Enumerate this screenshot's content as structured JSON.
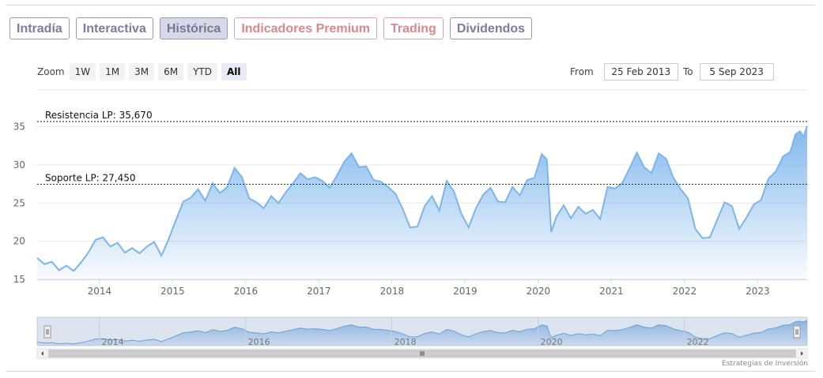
{
  "tabs": [
    {
      "label": "Intradía",
      "style": "normal"
    },
    {
      "label": "Interactiva",
      "style": "normal"
    },
    {
      "label": "Histórica",
      "style": "active"
    },
    {
      "label": "Indicadores Premium",
      "style": "premium"
    },
    {
      "label": "Trading",
      "style": "premium"
    },
    {
      "label": "Dividendos",
      "style": "normal"
    }
  ],
  "zoom": {
    "label": "Zoom",
    "buttons": [
      "1W",
      "1M",
      "3M",
      "6M",
      "YTD",
      "All"
    ],
    "selected": "All"
  },
  "range": {
    "from_label": "From",
    "from_value": "25 Feb 2013",
    "to_label": "To",
    "to_value": "5 Sep 2023"
  },
  "credit": "Estrategias de Inversión",
  "colors": {
    "line": "#7cb5ec",
    "resistance": "#111111",
    "support": "#a00000",
    "navigator_line": "#6a9fd8"
  },
  "chart_data": {
    "type": "area",
    "title": "",
    "xlabel": "",
    "ylabel": "",
    "xlim": [
      2013.15,
      2023.68
    ],
    "ylim": [
      15,
      36.5
    ],
    "y_ticks": [
      15,
      20,
      25,
      30,
      35
    ],
    "x_ticks": [
      2014,
      2015,
      2016,
      2017,
      2018,
      2019,
      2020,
      2021,
      2022,
      2023
    ],
    "navigator_ticks": [
      2014,
      2016,
      2018,
      2020,
      2022
    ],
    "grid": "horizontal",
    "legend": "none",
    "lines": [
      {
        "label": "Resistencia LP: 35,670",
        "value": 35.67,
        "color": "#111111"
      },
      {
        "label": "Soporte LP: 27,450",
        "value": 27.45,
        "color": "#a00000"
      }
    ],
    "series": [
      {
        "points": [
          [
            2013.15,
            17.8
          ],
          [
            2013.25,
            17.0
          ],
          [
            2013.35,
            17.3
          ],
          [
            2013.45,
            16.2
          ],
          [
            2013.55,
            16.8
          ],
          [
            2013.65,
            16.1
          ],
          [
            2013.75,
            17.2
          ],
          [
            2013.85,
            18.5
          ],
          [
            2013.95,
            20.2
          ],
          [
            2014.05,
            20.5
          ],
          [
            2014.15,
            19.3
          ],
          [
            2014.25,
            19.8
          ],
          [
            2014.35,
            18.5
          ],
          [
            2014.45,
            19.1
          ],
          [
            2014.55,
            18.4
          ],
          [
            2014.65,
            19.3
          ],
          [
            2014.75,
            19.9
          ],
          [
            2014.85,
            18.1
          ],
          [
            2014.95,
            20.3
          ],
          [
            2015.05,
            22.8
          ],
          [
            2015.15,
            25.2
          ],
          [
            2015.25,
            25.7
          ],
          [
            2015.35,
            26.8
          ],
          [
            2015.45,
            25.3
          ],
          [
            2015.55,
            27.6
          ],
          [
            2015.65,
            26.3
          ],
          [
            2015.75,
            27.1
          ],
          [
            2015.85,
            29.6
          ],
          [
            2015.95,
            28.4
          ],
          [
            2016.05,
            25.6
          ],
          [
            2016.15,
            25.1
          ],
          [
            2016.25,
            24.3
          ],
          [
            2016.35,
            25.9
          ],
          [
            2016.45,
            25.0
          ],
          [
            2016.55,
            26.4
          ],
          [
            2016.65,
            27.6
          ],
          [
            2016.75,
            28.9
          ],
          [
            2016.85,
            28.1
          ],
          [
            2016.95,
            28.4
          ],
          [
            2017.05,
            27.9
          ],
          [
            2017.15,
            27.0
          ],
          [
            2017.25,
            28.6
          ],
          [
            2017.35,
            30.4
          ],
          [
            2017.45,
            31.5
          ],
          [
            2017.55,
            29.7
          ],
          [
            2017.65,
            29.8
          ],
          [
            2017.75,
            28.0
          ],
          [
            2017.85,
            27.8
          ],
          [
            2017.95,
            27.1
          ],
          [
            2018.05,
            26.2
          ],
          [
            2018.15,
            24.2
          ],
          [
            2018.25,
            21.8
          ],
          [
            2018.35,
            21.9
          ],
          [
            2018.45,
            24.6
          ],
          [
            2018.55,
            25.9
          ],
          [
            2018.65,
            24.0
          ],
          [
            2018.75,
            27.9
          ],
          [
            2018.85,
            26.5
          ],
          [
            2018.95,
            23.6
          ],
          [
            2019.05,
            21.8
          ],
          [
            2019.15,
            24.3
          ],
          [
            2019.25,
            26.1
          ],
          [
            2019.35,
            27.0
          ],
          [
            2019.45,
            25.2
          ],
          [
            2019.55,
            25.1
          ],
          [
            2019.65,
            27.1
          ],
          [
            2019.75,
            26.0
          ],
          [
            2019.85,
            28.0
          ],
          [
            2019.95,
            28.3
          ],
          [
            2020.05,
            31.4
          ],
          [
            2020.12,
            30.7
          ],
          [
            2020.18,
            21.2
          ],
          [
            2020.25,
            23.2
          ],
          [
            2020.35,
            24.7
          ],
          [
            2020.45,
            23.0
          ],
          [
            2020.55,
            24.5
          ],
          [
            2020.65,
            23.6
          ],
          [
            2020.75,
            24.1
          ],
          [
            2020.85,
            22.9
          ],
          [
            2020.95,
            27.1
          ],
          [
            2021.05,
            26.9
          ],
          [
            2021.15,
            27.6
          ],
          [
            2021.25,
            29.5
          ],
          [
            2021.35,
            31.6
          ],
          [
            2021.45,
            29.7
          ],
          [
            2021.55,
            28.9
          ],
          [
            2021.65,
            31.5
          ],
          [
            2021.75,
            30.8
          ],
          [
            2021.85,
            28.3
          ],
          [
            2021.95,
            26.8
          ],
          [
            2022.05,
            25.6
          ],
          [
            2022.15,
            21.6
          ],
          [
            2022.25,
            20.4
          ],
          [
            2022.35,
            20.5
          ],
          [
            2022.45,
            22.8
          ],
          [
            2022.55,
            25.1
          ],
          [
            2022.65,
            24.6
          ],
          [
            2022.75,
            21.6
          ],
          [
            2022.85,
            23.1
          ],
          [
            2022.95,
            24.8
          ],
          [
            2023.05,
            25.4
          ],
          [
            2023.15,
            28.2
          ],
          [
            2023.25,
            29.1
          ],
          [
            2023.35,
            31.1
          ],
          [
            2023.45,
            31.7
          ],
          [
            2023.52,
            34.0
          ],
          [
            2023.58,
            34.4
          ],
          [
            2023.63,
            33.7
          ],
          [
            2023.68,
            35.1
          ]
        ]
      }
    ]
  }
}
